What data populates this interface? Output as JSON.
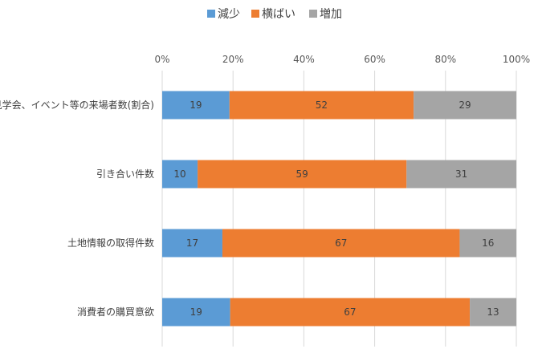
{
  "chart_data": {
    "type": "bar",
    "orientation": "horizontal",
    "stacked": true,
    "percent_stacked": true,
    "categories": [
      "見学会、イベント等の来場者数(割合)",
      "引き合い件数",
      "土地情報の取得件数",
      "消費者の購買意欲"
    ],
    "series": [
      {
        "name": "減少",
        "color": "#5b9bd5",
        "values": [
          19,
          10,
          17,
          19
        ]
      },
      {
        "name": "横ばい",
        "color": "#ed7d31",
        "values": [
          52,
          59,
          67,
          67
        ]
      },
      {
        "name": "増加",
        "color": "#a5a5a5",
        "values": [
          29,
          31,
          16,
          13
        ]
      }
    ],
    "xaxis": {
      "ticks": [
        "0%",
        "20%",
        "40%",
        "60%",
        "80%",
        "100%"
      ],
      "position": "top"
    },
    "xlim": [
      0,
      100
    ],
    "grid": true,
    "legend": "top"
  }
}
